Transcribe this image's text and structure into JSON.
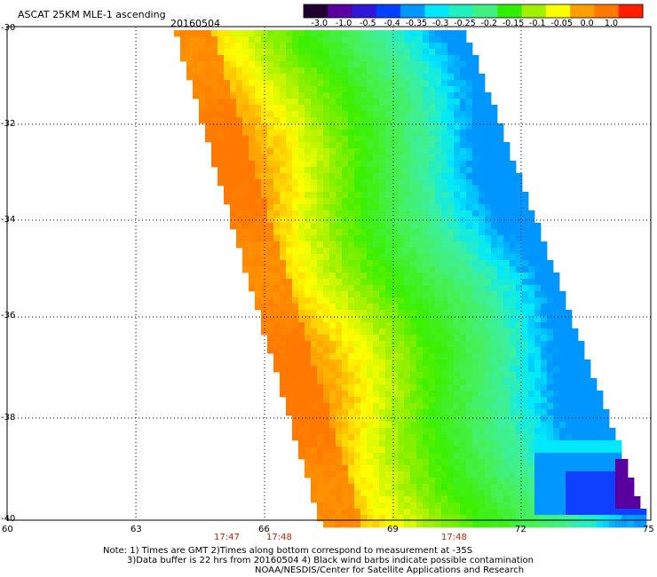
{
  "header": {
    "title": "ASCAT 25KM MLE-1 ascending",
    "date": "20160504"
  },
  "colorbar": {
    "labels": [
      "-3.0",
      "-1.0",
      "-0.5",
      "-0.4",
      "-0.35",
      "-0.3",
      "-0.25",
      "-0.2",
      "-0.15",
      "-0.1",
      "-0.05",
      "0.0",
      "1.0"
    ],
    "colors": [
      "#200030",
      "#5a00a0",
      "#3018d8",
      "#0040ff",
      "#0098ff",
      "#00e8ff",
      "#20f0c0",
      "#40f080",
      "#30f000",
      "#a0f000",
      "#ffff00",
      "#ffa000",
      "#ff7800",
      "#ff2000"
    ]
  },
  "axes": {
    "y_labels": [
      "-30",
      "-32",
      "-34",
      "-36",
      "-38",
      "-40"
    ],
    "x_labels": [
      "60",
      "63",
      "66",
      "69",
      "72",
      "75"
    ],
    "x_range": [
      60,
      75
    ],
    "y_range": [
      -40,
      -30
    ]
  },
  "times": [
    "17:47",
    "17:48",
    "17:48"
  ],
  "notes": {
    "line1": "Note: 1) Times are GMT 2)Times along bottom correspond to measurement at -35S",
    "line2": "3)Data buffer is 22 hrs from 20160504 4) Black wind barbs indicate possible contamination",
    "line3": "NOAA/NESDIS/Center for Satellite Applications and Research"
  }
}
